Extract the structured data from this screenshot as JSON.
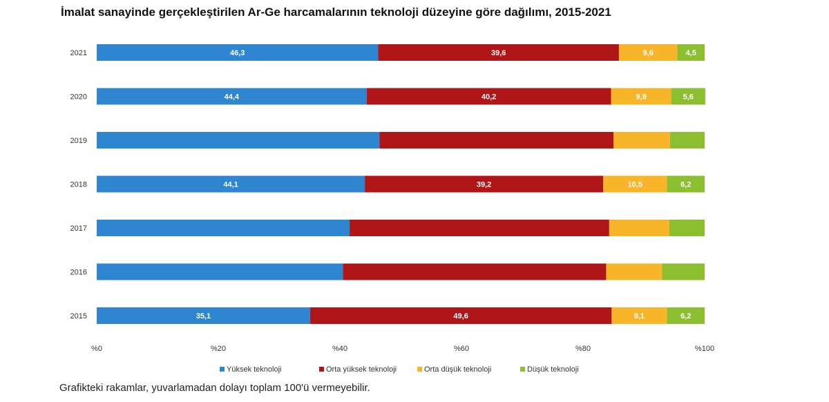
{
  "chart_data": {
    "type": "bar",
    "orientation": "horizontal",
    "stacked": true,
    "title": "İmalat sanayinde gerçekleştirilen Ar-Ge harcamalarının teknoloji düzeyine göre dağılımı, 2015-2021",
    "categories": [
      "2021",
      "2020",
      "2019",
      "2018",
      "2017",
      "2016",
      "2015"
    ],
    "series": [
      {
        "name": "Yüksek teknoloji",
        "color": "#2e86d1",
        "values": [
          46.3,
          44.4,
          46.5,
          44.1,
          41.6,
          40.5,
          35.1
        ],
        "labels": [
          "46,3",
          "44,4",
          "",
          "44,1",
          "",
          "",
          "35,1"
        ]
      },
      {
        "name": "Orta yüksek teknoloji",
        "color": "#b01517",
        "values": [
          39.6,
          40.2,
          38.5,
          39.2,
          42.7,
          43.3,
          49.6
        ],
        "labels": [
          "39,6",
          "40,2",
          "",
          "39,2",
          "",
          "",
          "49,6"
        ]
      },
      {
        "name": "Orta düşük teknoloji",
        "color": "#f9b529",
        "values": [
          9.6,
          9.9,
          9.3,
          10.5,
          9.9,
          9.2,
          9.1
        ],
        "labels": [
          "9,6",
          "9,9",
          "",
          "10,5",
          "",
          "",
          "9,1"
        ]
      },
      {
        "name": "Düşük teknoloji",
        "color": "#8cbf2f",
        "values": [
          4.5,
          5.6,
          5.7,
          6.2,
          5.8,
          7.0,
          6.2
        ],
        "labels": [
          "4,5",
          "5,6",
          "",
          "6,2",
          "",
          "",
          "6,2"
        ]
      }
    ],
    "xticks": [
      "%0",
      "%20",
      "%40",
      "%60",
      "%80",
      "%100"
    ],
    "xlim": [
      0,
      100
    ],
    "legend": "bottom"
  },
  "note": "Grafikteki rakamlar, yuvarlamadan dolayı toplam 100'ü vermeyebilir."
}
